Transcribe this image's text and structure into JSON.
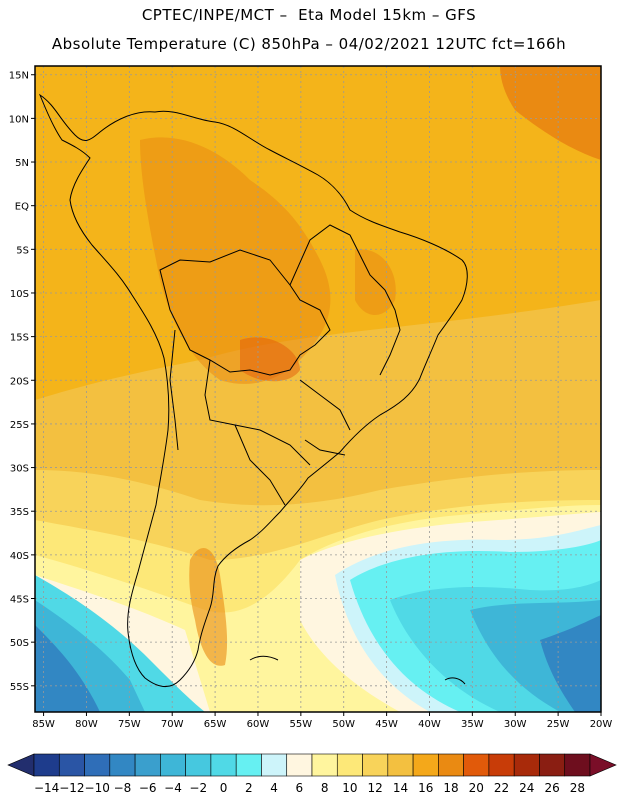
{
  "header": {
    "line1": "CPTEC/INPE/MCT –  Eta Model 15km – GFS",
    "line2": "Absolute Temperature (C) 850hPa – 04/02/2021 12UTC fct=166h"
  },
  "map": {
    "lat_labels": [
      "15N",
      "10N",
      "5N",
      "EQ",
      "5S",
      "10S",
      "15S",
      "20S",
      "25S",
      "30S",
      "35S",
      "40S",
      "45S",
      "50S",
      "55S"
    ],
    "lon_labels": [
      "85W",
      "80W",
      "75W",
      "70W",
      "65W",
      "60W",
      "55W",
      "50W",
      "45W",
      "40W",
      "35W",
      "30W",
      "25W",
      "20W"
    ],
    "extent": {
      "lon": [
        -86,
        -20
      ],
      "lat": [
        16,
        -58
      ]
    },
    "background_color": "#f4b41a"
  },
  "colorbar": {
    "labels": [
      "-14",
      "-12",
      "-10",
      "-8",
      "-6",
      "-4",
      "-2",
      "0",
      "2",
      "4",
      "6",
      "8",
      "10",
      "12",
      "14",
      "16",
      "18",
      "20",
      "22",
      "24",
      "26",
      "28"
    ],
    "colors": [
      "#1e3c8c",
      "#2a55a5",
      "#2f6eb8",
      "#3287c3",
      "#3a9fcd",
      "#3eb6d7",
      "#46c8df",
      "#50d9e6",
      "#66f0f2",
      "#cdf4fa",
      "#fff6e0",
      "#fff59e",
      "#fde878",
      "#f8d35a",
      "#f3c040",
      "#f4a81a",
      "#ea8a12",
      "#e15a0a",
      "#c83c08",
      "#a82a0a",
      "#8a1e12",
      "#6e0e1e"
    ],
    "end_low": "#222e6e",
    "end_high": "#7a0e28"
  }
}
